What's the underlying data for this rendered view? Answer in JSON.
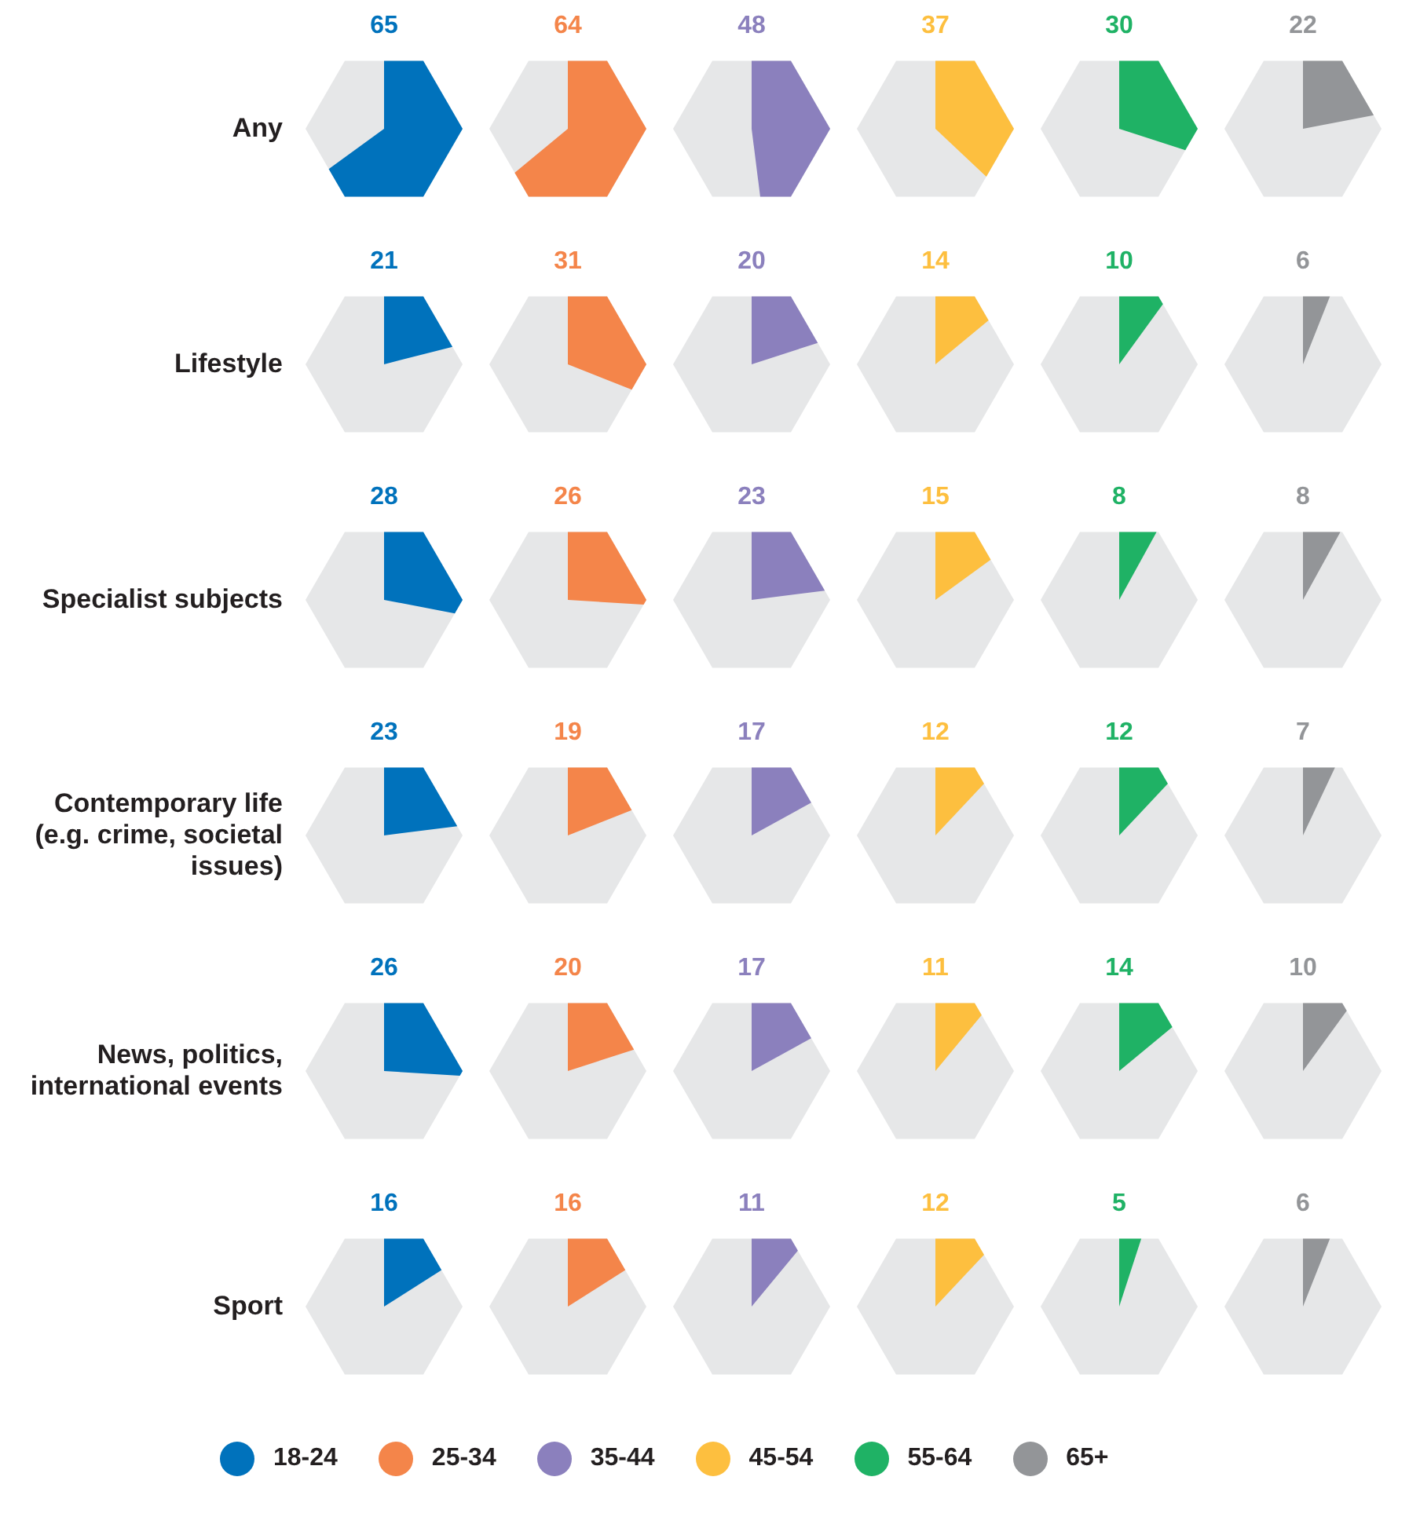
{
  "chart_data": {
    "type": "other",
    "categories": [
      "Any",
      "Lifestyle",
      "Specialist subjects",
      "Contemporary life (e.g. crime, societal issues)",
      "News, politics, international events",
      "Sport"
    ],
    "series": [
      {
        "name": "18-24",
        "color": "#0072bc",
        "values": [
          65,
          21,
          28,
          23,
          26,
          16
        ]
      },
      {
        "name": "25-34",
        "color": "#f4854a",
        "values": [
          64,
          31,
          26,
          19,
          20,
          16
        ]
      },
      {
        "name": "35-44",
        "color": "#8b80bd",
        "values": [
          48,
          20,
          23,
          17,
          17,
          11
        ]
      },
      {
        "name": "45-54",
        "color": "#fdbf3f",
        "values": [
          37,
          14,
          15,
          12,
          11,
          12
        ]
      },
      {
        "name": "55-64",
        "color": "#1fb265",
        "values": [
          30,
          10,
          8,
          12,
          14,
          5
        ]
      },
      {
        "name": "65+",
        "color": "#939598",
        "values": [
          22,
          6,
          8,
          7,
          10,
          6
        ]
      }
    ],
    "data_labels": true,
    "legend": "bottom"
  }
}
